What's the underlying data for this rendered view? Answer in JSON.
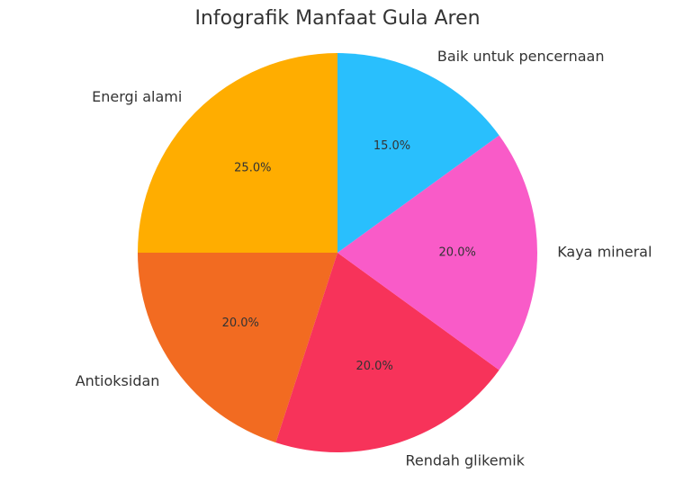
{
  "chart_data": {
    "type": "pie",
    "title": "Infografik Manfaat Gula Aren",
    "categories": [
      "Energi alami",
      "Antioksidan",
      "Rendah glikemik",
      "Kaya mineral",
      "Baik untuk pencernaan"
    ],
    "values": [
      25,
      20,
      20,
      20,
      15
    ],
    "value_labels": [
      "25.0%",
      "20.0%",
      "20.0%",
      "20.0%",
      "15.0%"
    ],
    "colors": [
      "#ffad00",
      "#f26b21",
      "#f7335a",
      "#f95bc8",
      "#29bffd"
    ]
  }
}
